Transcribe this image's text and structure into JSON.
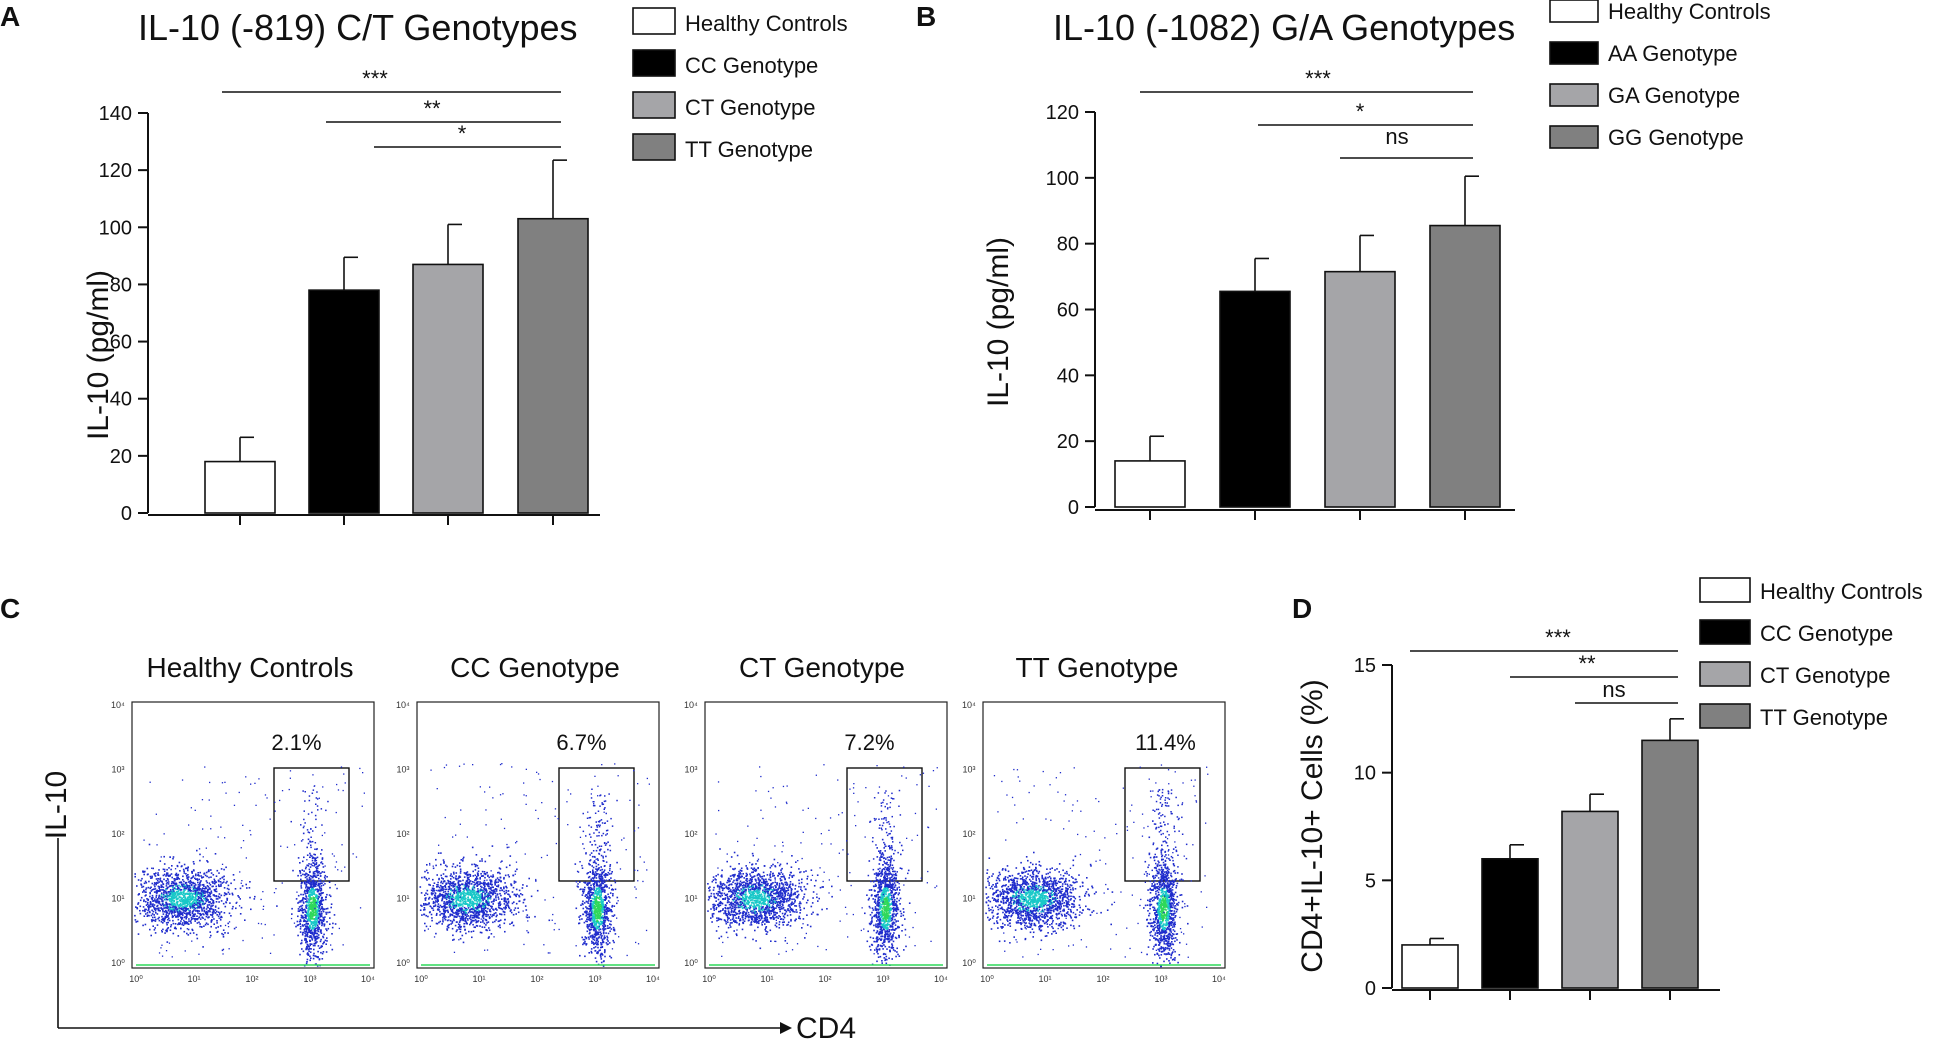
{
  "colors": {
    "healthy": "#ffffff",
    "cc": "#000000",
    "ct_ga": "#a5a5a8",
    "tt_gg": "#808080",
    "dot_blue": "#1f2ccc",
    "dot_cyan": "#19c8c8",
    "dot_green": "#2fd85a"
  },
  "chart_data": [
    {
      "panel": "A",
      "type": "bar",
      "title": "IL-10 (-819) C/T Genotypes",
      "ylabel": "IL-10 (pg/ml)",
      "ylim": [
        0,
        140
      ],
      "yticks": [
        "0",
        "20",
        "40",
        "60",
        "80",
        "100",
        "120",
        "140"
      ],
      "categories": [
        "Healthy Controls",
        "CC Genotype",
        "CT Genotype",
        "TT Genotype"
      ],
      "values": [
        18,
        78,
        87,
        103
      ],
      "errors": [
        8.5,
        11.5,
        14,
        20.5
      ],
      "legend": [
        "Healthy Controls",
        "CC Genotype",
        "CT Genotype",
        "TT Genotype"
      ],
      "significance": [
        {
          "from": 0,
          "to": 3,
          "label": "***"
        },
        {
          "from": 1,
          "to": 3,
          "label": "**"
        },
        {
          "from": 2,
          "to": 3,
          "label": "*"
        }
      ]
    },
    {
      "panel": "B",
      "type": "bar",
      "title": "IL-10 (-1082) G/A Genotypes",
      "ylabel": "IL-10 (pg/ml)",
      "ylim": [
        0,
        120
      ],
      "yticks": [
        "0",
        "20",
        "40",
        "60",
        "80",
        "100",
        "120"
      ],
      "categories": [
        "Healthy Controls",
        "AA Genotype",
        "GA Genotype",
        "GG Genotype"
      ],
      "values": [
        14,
        65.5,
        71.5,
        85.5
      ],
      "errors": [
        7.5,
        10,
        11,
        15
      ],
      "legend": [
        "Healthy Controls",
        "AA Genotype",
        "GA Genotype",
        "GG Genotype"
      ],
      "significance": [
        {
          "from": 0,
          "to": 3,
          "label": "***"
        },
        {
          "from": 1,
          "to": 3,
          "label": "*"
        },
        {
          "from": 2,
          "to": 3,
          "label": "ns"
        }
      ]
    },
    {
      "panel": "C",
      "type": "scatter",
      "xlabel": "CD4",
      "ylabel": "IL-10",
      "tick_labels": [
        "10⁰",
        "10¹",
        "10²",
        "10³",
        "10⁴"
      ],
      "plots": [
        {
          "title": "Healthy Controls",
          "gate_percent": "2.1%"
        },
        {
          "title": "CC Genotype",
          "gate_percent": "6.7%"
        },
        {
          "title": "CT Genotype",
          "gate_percent": "7.2%"
        },
        {
          "title": "TT Genotype",
          "gate_percent": "11.4%"
        }
      ]
    },
    {
      "panel": "D",
      "type": "bar",
      "title": "",
      "ylabel": "CD4+IL-10+ Cells (%)",
      "ylim": [
        0,
        15
      ],
      "yticks": [
        "0",
        "5",
        "10",
        "15"
      ],
      "categories": [
        "Healthy Controls",
        "CC Genotype",
        "CT Genotype",
        "TT Genotype"
      ],
      "values": [
        2,
        6,
        8.2,
        11.5
      ],
      "errors": [
        0.3,
        0.65,
        0.8,
        1
      ],
      "legend": [
        "Healthy Controls",
        "CC Genotype",
        "CT Genotype",
        "TT Genotype"
      ],
      "significance": [
        {
          "from": 0,
          "to": 3,
          "label": "***"
        },
        {
          "from": 1,
          "to": 3,
          "label": "**"
        },
        {
          "from": 2,
          "to": 3,
          "label": "ns"
        }
      ]
    }
  ]
}
